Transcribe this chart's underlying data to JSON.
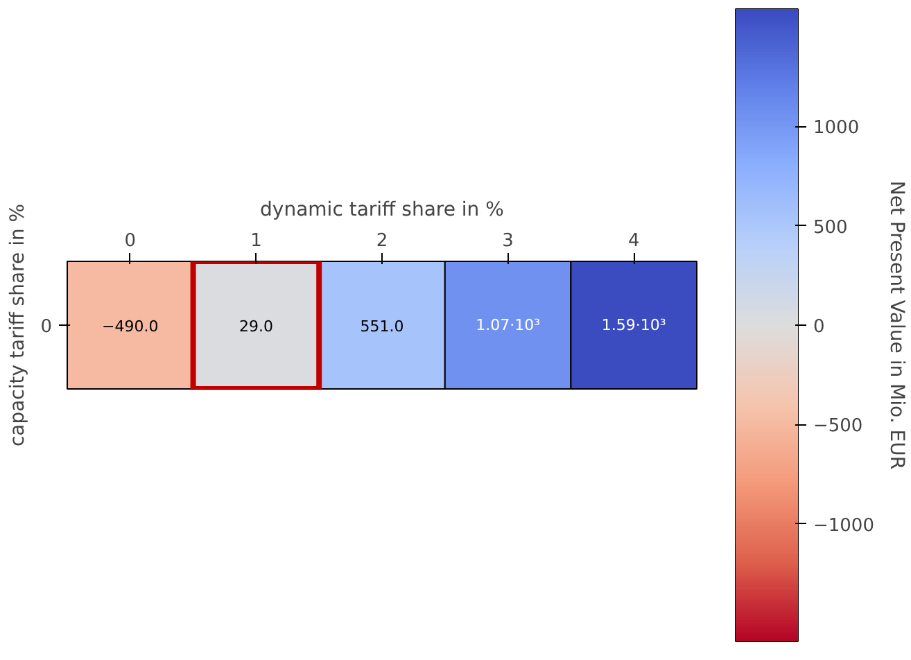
{
  "chart_data": {
    "type": "heatmap",
    "xlabel": "dynamic tariff share in %",
    "ylabel": "capacity tariff share in %",
    "clabel": "Net Present Value in Mio. EUR",
    "categories": [
      "0",
      "1",
      "2",
      "3",
      "4"
    ],
    "y_categories": [
      "0"
    ],
    "cells": [
      [
        -490.0,
        29.0,
        551.0,
        1070,
        1590
      ]
    ],
    "cell_labels": [
      [
        "−490.0",
        "29.0",
        "551.0",
        "1.07·10³",
        "1.59·10³"
      ]
    ],
    "clim": [
      -1590,
      1590
    ],
    "cticks": [
      {
        "value": -1000,
        "label": "−1000"
      },
      {
        "value": -500,
        "label": "−500"
      },
      0,
      500,
      1000
    ]
  }
}
